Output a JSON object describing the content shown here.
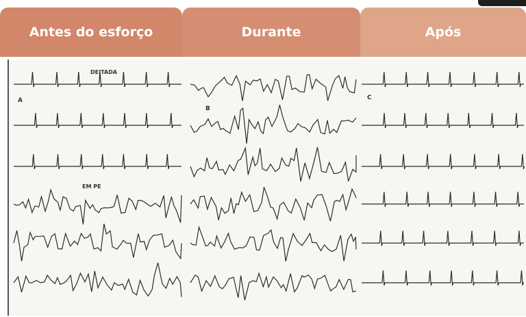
{
  "tabs": [
    "Antes do esforço",
    "Durante",
    "Após"
  ],
  "ecg": {
    "labels": {
      "lying": "DEITADA",
      "standing": "EM PE",
      "panel_a": "A",
      "panel_b": "B",
      "panel_c": "C"
    }
  }
}
